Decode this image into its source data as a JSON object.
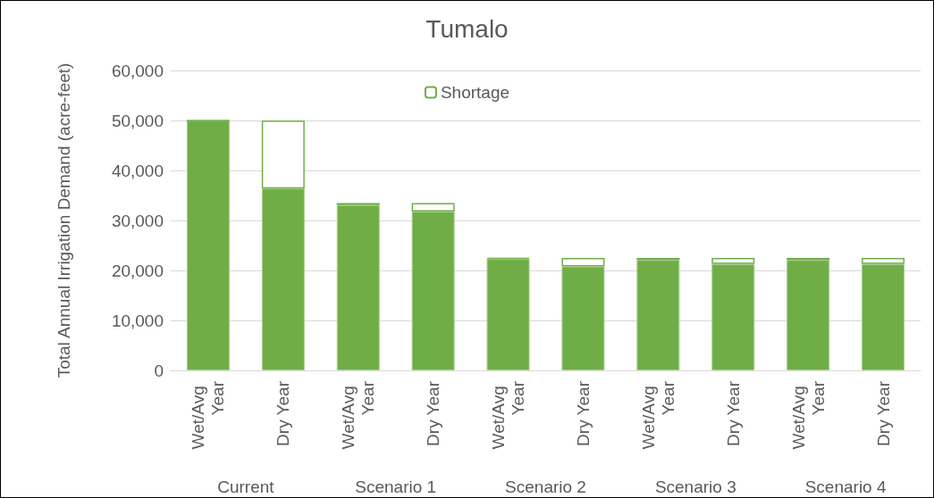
{
  "chart_data": {
    "type": "bar",
    "title": "Tumalo",
    "ylabel": "Total Annual Irrigation Demand (acre-feet)",
    "categories": [
      "Wet/Avg Year",
      "Dry Year",
      "Wet/Avg Year",
      "Dry Year",
      "Wet/Avg Year",
      "Dry Year",
      "Wet/Avg Year",
      "Dry Year",
      "Wet/Avg Year",
      "Dry Year"
    ],
    "annotations": [
      "Current",
      "Scenario 1",
      "Scenario 2",
      "Scenario 3",
      "Scenario 4"
    ],
    "stacked": true,
    "series": [
      {
        "color": "#70ad47",
        "values": [
          50000,
          36400,
          33100,
          31800,
          22300,
          20800,
          22100,
          21300,
          22100,
          21300
        ]
      },
      {
        "name": "Shortage",
        "color": "#70ad47",
        "values": [
          0,
          13600,
          400,
          1700,
          200,
          1700,
          400,
          1200,
          400,
          1200
        ]
      }
    ],
    "ylim": [
      0,
      60000
    ],
    "yticks": [
      0,
      {
        "value": 10000,
        "label": "10,000"
      },
      {
        "value": 20000,
        "label": "20,000"
      },
      {
        "value": 30000,
        "label": "30,000"
      },
      {
        "value": 40000,
        "label": "40,000"
      },
      {
        "value": 50000,
        "label": "50,000"
      },
      {
        "value": 60000,
        "label": "60,000"
      }
    ],
    "grid": "y",
    "legend": "top"
  }
}
